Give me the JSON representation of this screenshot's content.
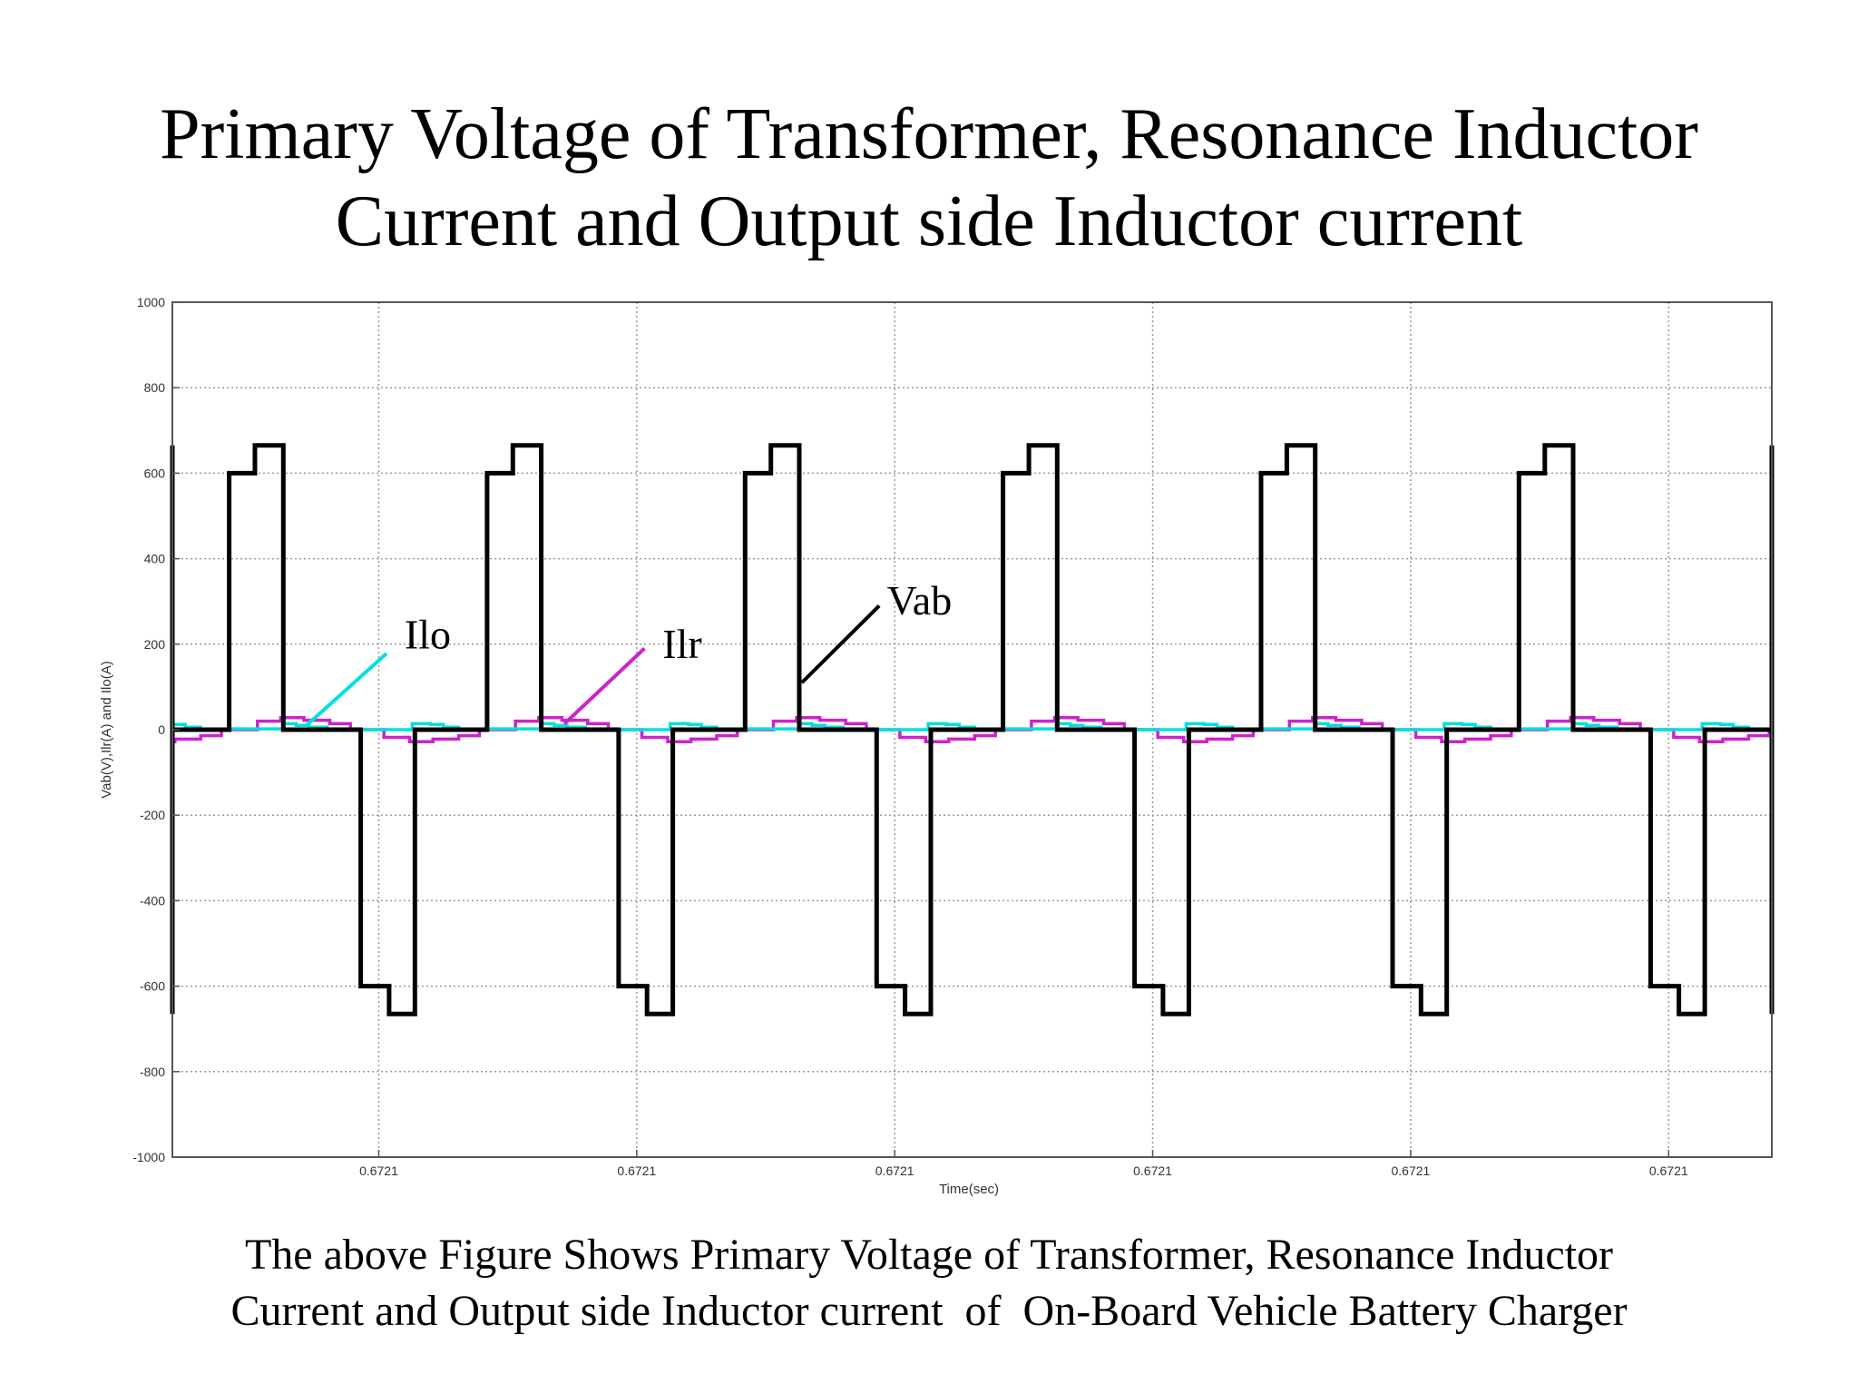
{
  "slide": {
    "title_line1": "Primary Voltage of Transformer, Resonance Inductor",
    "title_line2": "Current and Output side Inductor current",
    "caption_line1": "The above Figure Shows Primary Voltage of Transformer, Resonance Inductor",
    "caption_line2": "Current and Output side Inductor current  of  On-Board Vehicle Battery Charger"
  },
  "chart_data": {
    "type": "line",
    "title": "",
    "xlabel": "Time(sec)",
    "ylabel": "Vab(V),Ilr(A) and Ilo(A)",
    "ylim": [
      -1000,
      1000
    ],
    "xlim": [
      0,
      6.2
    ],
    "yticks": [
      -1000,
      -800,
      -600,
      -400,
      -200,
      0,
      200,
      400,
      600,
      800,
      1000
    ],
    "ytick_labels": [
      "-1000",
      "-800",
      "-600",
      "-400",
      "-200",
      "0",
      "200",
      "400",
      "600",
      "800",
      "1000"
    ],
    "xticks": [
      0.8,
      1.8,
      2.8,
      3.8,
      4.8,
      5.8
    ],
    "xtick_labels": [
      "0.6721",
      "0.6721",
      "0.6721",
      "0.6721",
      "0.6721",
      "0.6721"
    ],
    "grid": true,
    "period": 1.0,
    "n_periods": 6,
    "colors": {
      "Vab": "#000000",
      "Ilr": "#cc22cc",
      "Ilo": "#00e0e0",
      "grid": "#9a9a9a",
      "frame": "#555555"
    },
    "series": [
      {
        "name": "Vab",
        "step_profile": [
          [
            0.0,
            0
          ],
          [
            0.22,
            600
          ],
          [
            0.32,
            665
          ],
          [
            0.43,
            0
          ],
          [
            0.73,
            -600
          ],
          [
            0.84,
            -665
          ],
          [
            0.94,
            0
          ],
          [
            1.0,
            0
          ]
        ]
      },
      {
        "name": "Ilr",
        "step_profile": [
          [
            0.0,
            0
          ],
          [
            0.33,
            20
          ],
          [
            0.42,
            28
          ],
          [
            0.51,
            22
          ],
          [
            0.61,
            14
          ],
          [
            0.69,
            0
          ],
          [
            0.82,
            -18
          ],
          [
            0.92,
            -28
          ],
          [
            1.01,
            -22
          ],
          [
            1.11,
            -14
          ],
          [
            1.19,
            0
          ],
          [
            1.22,
            0
          ]
        ]
      },
      {
        "name": "Ilo",
        "step_profile": [
          [
            0.0,
            12
          ],
          [
            0.05,
            6
          ],
          [
            0.11,
            0
          ],
          [
            0.21,
            2
          ],
          [
            0.43,
            14
          ],
          [
            0.48,
            10
          ],
          [
            0.53,
            6
          ],
          [
            0.6,
            2
          ],
          [
            0.72,
            0
          ],
          [
            0.93,
            14
          ]
        ]
      }
    ],
    "annotations": [
      {
        "text": "Ilo",
        "series": "Ilo"
      },
      {
        "text": "Ilr",
        "series": "Ilr"
      },
      {
        "text": "Vab",
        "series": "Vab"
      }
    ]
  }
}
